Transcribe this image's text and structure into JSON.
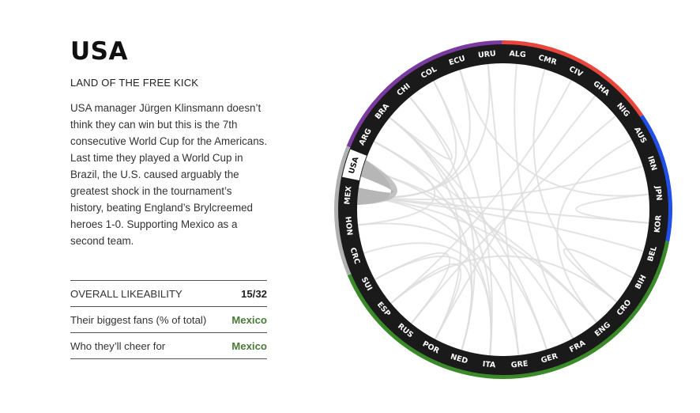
{
  "profile": {
    "country": "USA",
    "tagline": "LAND OF THE FREE KICK",
    "description": "USA manager Jürgen Klinsmann doesn’t think they can win but this is the 7th consecutive World Cup for the Americans. Last time they played a World Cup in Brazil, the U.S. caused arguably the greatest shock in the tournament’s history, beating England’s Brylcreemed heroes 1-0. Supporting Mexico as a second team."
  },
  "stats": [
    {
      "label": "OVERALL LIKEABILITY",
      "value": "15/32",
      "color": "#222222"
    },
    {
      "label": "Their biggest fans (% of total)",
      "value": "Mexico",
      "color": "#4a7a3a"
    },
    {
      "label": "Who they’ll cheer for",
      "value": "Mexico",
      "color": "#4a7a3a"
    }
  ],
  "chord": {
    "selected": "USA",
    "countries": [
      "URU",
      "ALG",
      "CMR",
      "CIV",
      "GHA",
      "NIG",
      "AUS",
      "IRN",
      "JPN",
      "KOR",
      "BEL",
      "BIH",
      "CRO",
      "ENG",
      "FRA",
      "GER",
      "GRE",
      "ITA",
      "NED",
      "POR",
      "RUS",
      "ESP",
      "SUI",
      "CRC",
      "HON",
      "MEX",
      "USA",
      "ARG",
      "BRA",
      "CHI",
      "COL",
      "ECU"
    ],
    "confederations": [
      {
        "members": [
          "ALG",
          "CMR",
          "CIV",
          "GHA",
          "NIG"
        ],
        "color": "#e8453c"
      },
      {
        "members": [
          "AUS",
          "IRN",
          "JPN",
          "KOR"
        ],
        "color": "#2050e8"
      },
      {
        "members": [
          "BEL",
          "BIH",
          "CRO",
          "ENG",
          "FRA",
          "GER",
          "GRE",
          "ITA",
          "NED",
          "POR",
          "RUS",
          "ESP",
          "SUI"
        ],
        "color": "#3a8a2a"
      },
      {
        "members": [
          "CRC",
          "HON",
          "MEX",
          "USA"
        ],
        "color": "#b0b0b0"
      },
      {
        "members": [
          "ARG",
          "BRA",
          "CHI",
          "COL",
          "ECU",
          "URU"
        ],
        "color": "#7a3aa0"
      }
    ],
    "highlight_links": [
      {
        "from": "USA",
        "to": "MEX"
      },
      {
        "from": "MEX",
        "to": "USA"
      }
    ],
    "background_links": [
      [
        "CHI",
        "BRA"
      ],
      [
        "COL",
        "MEX"
      ],
      [
        "ECU",
        "MEX"
      ],
      [
        "ARG",
        "NED"
      ],
      [
        "BRA",
        "ITA"
      ],
      [
        "URU",
        "GRE"
      ],
      [
        "ALG",
        "FRA"
      ],
      [
        "CMR",
        "CRO"
      ],
      [
        "CIV",
        "ESP"
      ],
      [
        "GHA",
        "POR"
      ],
      [
        "NIG",
        "RUS"
      ],
      [
        "AUS",
        "ENG"
      ],
      [
        "IRN",
        "MEX"
      ],
      [
        "JPN",
        "KOR"
      ],
      [
        "KOR",
        "MEX"
      ],
      [
        "BEL",
        "MEX"
      ],
      [
        "BIH",
        "CRO"
      ],
      [
        "CRO",
        "ESP"
      ],
      [
        "ENG",
        "MEX"
      ],
      [
        "FRA",
        "ARG"
      ],
      [
        "GER",
        "BRA"
      ],
      [
        "GRE",
        "HON"
      ],
      [
        "ITA",
        "CRC"
      ],
      [
        "NED",
        "SUI"
      ],
      [
        "POR",
        "ESP"
      ],
      [
        "RUS",
        "SUI"
      ],
      [
        "COL",
        "ITA"
      ],
      [
        "ECU",
        "JPN"
      ],
      [
        "URU",
        "MEX"
      ],
      [
        "ARG",
        "HON"
      ],
      [
        "BRA",
        "POR"
      ],
      [
        "GER",
        "USA"
      ],
      [
        "ENG",
        "USA"
      ],
      [
        "ITA",
        "MEX"
      ],
      [
        "NED",
        "CHI"
      ]
    ]
  }
}
